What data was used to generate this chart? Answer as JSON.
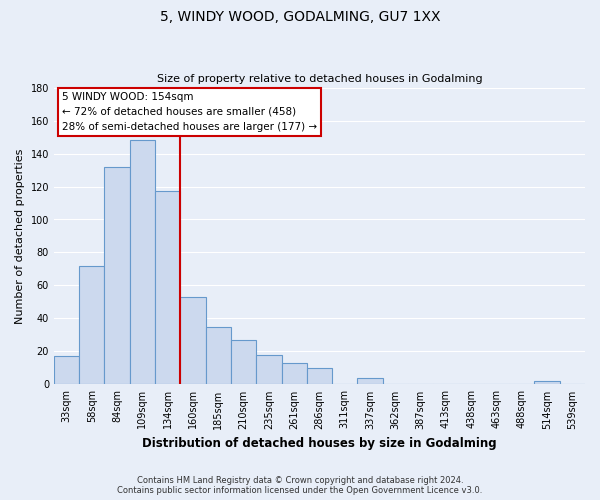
{
  "title": "5, WINDY WOOD, GODALMING, GU7 1XX",
  "subtitle": "Size of property relative to detached houses in Godalming",
  "xlabel": "Distribution of detached houses by size in Godalming",
  "ylabel": "Number of detached properties",
  "bar_labels": [
    "33sqm",
    "58sqm",
    "84sqm",
    "109sqm",
    "134sqm",
    "160sqm",
    "185sqm",
    "210sqm",
    "235sqm",
    "261sqm",
    "286sqm",
    "311sqm",
    "337sqm",
    "362sqm",
    "387sqm",
    "413sqm",
    "438sqm",
    "463sqm",
    "488sqm",
    "514sqm",
    "539sqm"
  ],
  "bar_values": [
    17,
    72,
    132,
    148,
    117,
    53,
    35,
    27,
    18,
    13,
    10,
    0,
    4,
    0,
    0,
    0,
    0,
    0,
    0,
    2,
    0
  ],
  "bar_color": "#ccd9ee",
  "bar_edge_color": "#6699cc",
  "ylim": [
    0,
    180
  ],
  "yticks": [
    0,
    20,
    40,
    60,
    80,
    100,
    120,
    140,
    160,
    180
  ],
  "vline_index": 4.5,
  "vline_color": "#cc0000",
  "annotation_title": "5 WINDY WOOD: 154sqm",
  "annotation_line1": "← 72% of detached houses are smaller (458)",
  "annotation_line2": "28% of semi-detached houses are larger (177) →",
  "annotation_box_facecolor": "#ffffff",
  "annotation_box_edgecolor": "#cc0000",
  "footer_line1": "Contains HM Land Registry data © Crown copyright and database right 2024.",
  "footer_line2": "Contains public sector information licensed under the Open Government Licence v3.0.",
  "fig_facecolor": "#e8eef8",
  "plot_facecolor": "#e8eef8",
  "grid_color": "#ffffff",
  "title_fontsize": 10,
  "subtitle_fontsize": 8,
  "xlabel_fontsize": 8.5,
  "ylabel_fontsize": 8,
  "tick_fontsize": 7,
  "annotation_fontsize": 7.5,
  "footer_fontsize": 6
}
